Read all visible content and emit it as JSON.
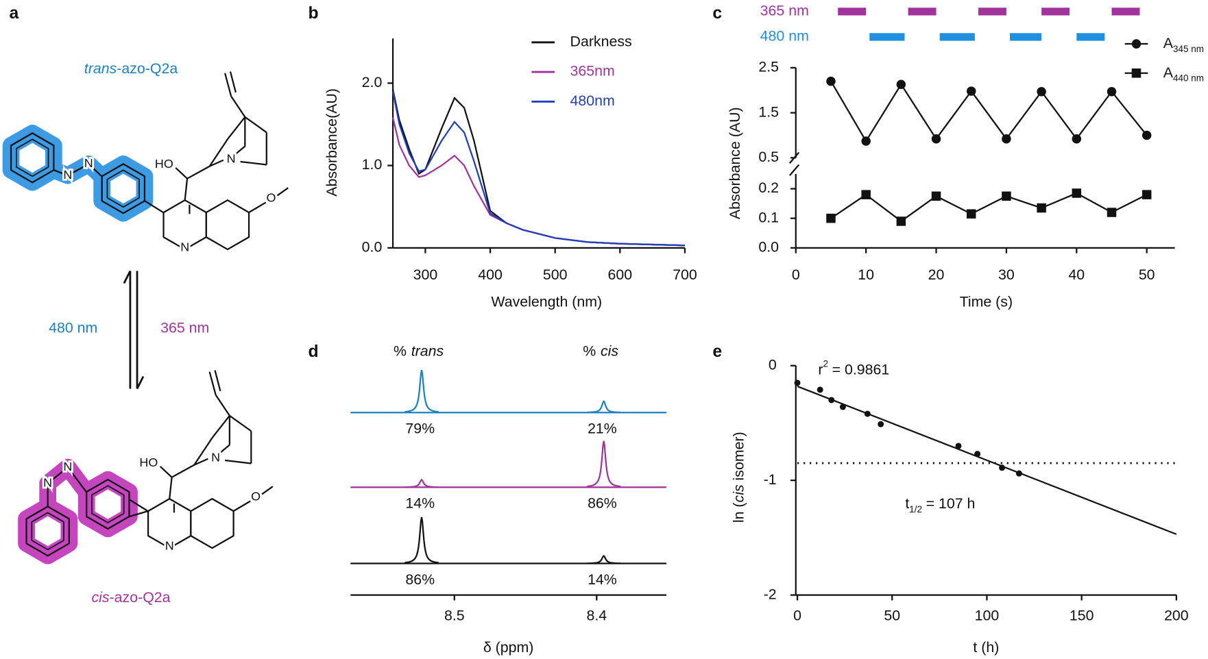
{
  "panel_labels": [
    "a",
    "b",
    "c",
    "d",
    "e"
  ],
  "scheme": {
    "trans": {
      "label": [
        "trans",
        "-azo-Q2a"
      ],
      "color": "#1a82c4",
      "halo": "#3c9be3",
      "atoms": [
        "N",
        "N",
        "HO",
        "N",
        "N",
        "O"
      ]
    },
    "cis": {
      "label": [
        "cis",
        "-azo-Q2a"
      ],
      "color": "#a3339c",
      "halo": "#c445bd",
      "atoms": [
        "N",
        "N",
        "HO",
        "N",
        "N",
        "O"
      ]
    },
    "arrows": {
      "backward": "480 nm",
      "forward": "365 nm"
    }
  },
  "chart_data": [
    {
      "type": "line",
      "xlabel": "Wavelength (nm)",
      "ylabel": "Absorbance(AU)",
      "xlim": [
        250,
        700
      ],
      "xticks": [
        300,
        400,
        500,
        600,
        700
      ],
      "ylim": [
        0,
        2.5
      ],
      "yticks": [
        {
          "value": 0,
          "label": "0.0"
        },
        {
          "value": 1,
          "label": "1.0"
        },
        {
          "value": 2,
          "label": "2.0"
        }
      ],
      "x": [
        250,
        260,
        275,
        290,
        300,
        325,
        345,
        360,
        375,
        400,
        425,
        450,
        500,
        550,
        600,
        650,
        700
      ],
      "series": [
        {
          "name": "Darkness",
          "color": "#111111",
          "values": [
            1.92,
            1.55,
            1.2,
            0.9,
            0.95,
            1.45,
            1.82,
            1.7,
            1.3,
            0.45,
            0.3,
            0.22,
            0.12,
            0.07,
            0.05,
            0.04,
            0.03
          ]
        },
        {
          "name": "365nm",
          "color": "#a3339c",
          "values": [
            1.58,
            1.25,
            1.0,
            0.86,
            0.88,
            1.0,
            1.12,
            1.0,
            0.75,
            0.4,
            0.3,
            0.22,
            0.12,
            0.07,
            0.05,
            0.04,
            0.03
          ]
        },
        {
          "name": "480nm",
          "color": "#1f3fbf",
          "values": [
            1.9,
            1.5,
            1.15,
            0.93,
            0.95,
            1.3,
            1.53,
            1.4,
            1.05,
            0.42,
            0.3,
            0.22,
            0.12,
            0.07,
            0.05,
            0.04,
            0.03
          ]
        }
      ],
      "legend": "upper right"
    },
    {
      "type": "line",
      "markers": true,
      "xlabel": "Time (s)",
      "ylabel": "Absorbance (AU)",
      "xlim": [
        0,
        54
      ],
      "xticks": [
        0,
        10,
        20,
        30,
        40,
        50
      ],
      "ylim": [
        0,
        2.5
      ],
      "y_break": [
        0.25,
        0.5
      ],
      "yticks": [
        {
          "value": 0,
          "label": "0.0"
        },
        {
          "value": 0.1,
          "label": "0.1"
        },
        {
          "value": 0.2,
          "label": "0.2"
        },
        {
          "value": 0.5,
          "label": "0.5"
        },
        {
          "value": 1.5,
          "label": "1.5"
        },
        {
          "value": 2.5,
          "label": "2.5"
        }
      ],
      "x": [
        5,
        10,
        15,
        20,
        25,
        30,
        35,
        40,
        45,
        50
      ],
      "series": [
        {
          "name": "A",
          "subscript": "345 nm",
          "marker": "circle",
          "color": "#111111",
          "values": [
            2.2,
            0.87,
            2.13,
            0.92,
            1.98,
            0.92,
            1.97,
            0.92,
            1.97,
            1.0
          ]
        },
        {
          "name": "A",
          "subscript": "440 nm",
          "marker": "square",
          "color": "#111111",
          "values": [
            0.1,
            0.18,
            0.09,
            0.175,
            0.115,
            0.175,
            0.135,
            0.185,
            0.12,
            0.18
          ]
        }
      ],
      "illumination": [
        {
          "name": "365 nm",
          "color": "#a3339c",
          "intervals": [
            [
              6,
              10
            ],
            [
              16,
              20
            ],
            [
              26,
              30
            ],
            [
              35,
              39
            ],
            [
              45,
              49
            ]
          ]
        },
        {
          "name": "480 nm",
          "color": "#1f8fe0",
          "intervals": [
            [
              10.5,
              15.5
            ],
            [
              20.5,
              25.5
            ],
            [
              30.5,
              35
            ],
            [
              40,
              44
            ]
          ]
        }
      ],
      "legend": "upper right"
    },
    {
      "type": "spectrum",
      "xlabel": "δ (ppm)",
      "xlim": [
        8.573,
        8.351
      ],
      "xticks": [
        8.5,
        8.4
      ],
      "peaks": [
        8.523,
        8.395
      ],
      "peak_labels": [
        {
          "prefix": "%",
          "name": "trans"
        },
        {
          "prefix": "%",
          "name": "cis"
        }
      ],
      "series": [
        {
          "color": "#1a82c4",
          "values": [
            79,
            21
          ],
          "value_labels": [
            "79%",
            "21%"
          ]
        },
        {
          "color": "#a3339c",
          "values": [
            14,
            86
          ],
          "value_labels": [
            "14%",
            "86%"
          ]
        },
        {
          "color": "#111111",
          "values": [
            86,
            14
          ],
          "value_labels": [
            "86%",
            "14%"
          ]
        }
      ]
    },
    {
      "type": "scatter",
      "xlabel": "t (h)",
      "ylabel": [
        "ln (",
        "cis",
        " isomer)"
      ],
      "xlim": [
        0,
        200
      ],
      "xticks": [
        0,
        50,
        100,
        150,
        200
      ],
      "ylim": [
        -2,
        0
      ],
      "yticks": [
        0,
        -1,
        -2
      ],
      "x": [
        0,
        12,
        18,
        24,
        37,
        44,
        85,
        95,
        108,
        117
      ],
      "values": [
        -0.15,
        -0.21,
        -0.3,
        -0.36,
        -0.42,
        -0.51,
        -0.7,
        -0.77,
        -0.89,
        -0.94
      ],
      "fit": {
        "x": [
          0,
          200
        ],
        "y": [
          -0.18,
          -1.47
        ]
      },
      "half_life_level": -0.85,
      "annotations": [
        {
          "base": "r",
          "sup": "2",
          "text": "= 0.9861"
        },
        {
          "base": "t",
          "sub": "1/2",
          "text": "= 107 h"
        }
      ]
    }
  ]
}
